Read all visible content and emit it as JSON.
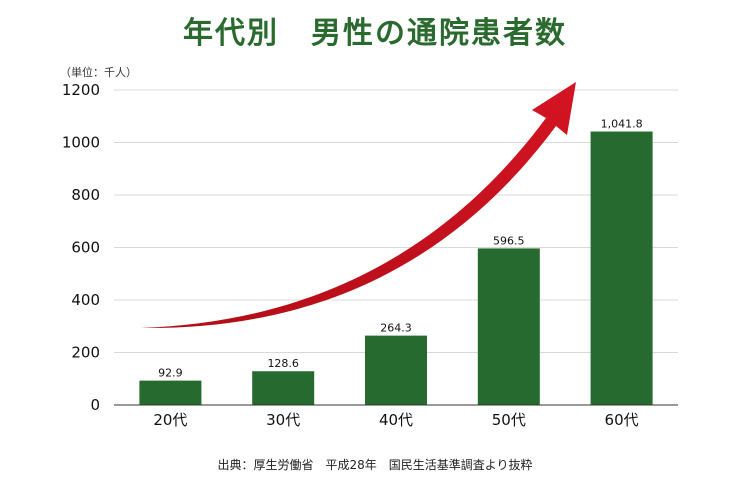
{
  "chart_data": {
    "type": "bar",
    "title": "年代別　男性の通院患者数",
    "unit_label": "（単位：千人）",
    "categories": [
      "20代",
      "30代",
      "40代",
      "50代",
      "60代"
    ],
    "values": [
      92.9,
      128.6,
      264.3,
      596.5,
      1041.8
    ],
    "value_labels": [
      "92.9",
      "128.6",
      "264.3",
      "596.5",
      "1,041.8"
    ],
    "yticks": [
      0,
      200,
      400,
      600,
      800,
      1000,
      1200
    ],
    "ylim": [
      0,
      1200
    ],
    "xlabel": "",
    "ylabel": "",
    "grid": true,
    "source": "出典：厚生労働省　平成28年　国民生活基準調査より抜粋"
  },
  "colors": {
    "bar": "#276a2f",
    "title": "#2a6a2e",
    "arrow": "#c8101c",
    "grid": "#d9d9d9",
    "axis": "#333333",
    "text": "#111111"
  }
}
